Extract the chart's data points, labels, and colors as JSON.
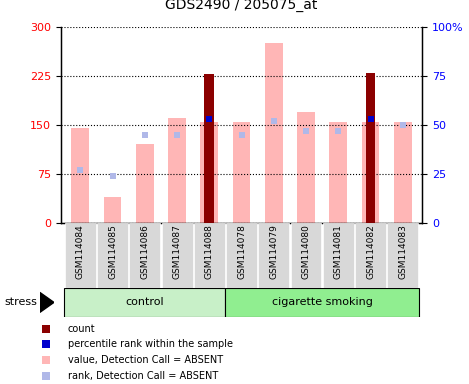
{
  "title": "GDS2490 / 205075_at",
  "samples": [
    "GSM114084",
    "GSM114085",
    "GSM114086",
    "GSM114087",
    "GSM114088",
    "GSM114078",
    "GSM114079",
    "GSM114080",
    "GSM114081",
    "GSM114082",
    "GSM114083"
  ],
  "value_absent": [
    145,
    40,
    120,
    160,
    155,
    155,
    275,
    170,
    155,
    155,
    155
  ],
  "rank_absent": [
    27,
    24,
    45,
    45,
    53,
    45,
    52,
    47,
    47,
    53,
    50
  ],
  "count": [
    0,
    0,
    0,
    0,
    228,
    0,
    0,
    0,
    0,
    230,
    0
  ],
  "percentile_rank": [
    0,
    0,
    0,
    0,
    53,
    0,
    0,
    0,
    0,
    53,
    0
  ],
  "left_ylim": [
    0,
    300
  ],
  "right_ylim": [
    0,
    100
  ],
  "left_yticks": [
    0,
    75,
    150,
    225,
    300
  ],
  "right_yticks": [
    0,
    25,
    50,
    75,
    100
  ],
  "right_yticklabels": [
    "0",
    "25",
    "50",
    "75",
    "100%"
  ],
  "color_value_absent": "#FFB6B6",
  "color_rank_absent": "#B0B8E8",
  "color_count": "#8B0000",
  "color_percentile": "#0000CD",
  "color_control_bg": "#C8F0C8",
  "color_smoking_bg": "#90EE90",
  "color_sample_bg": "#D8D8D8",
  "bar_width": 0.55,
  "n_control": 5,
  "n_smoking": 6
}
